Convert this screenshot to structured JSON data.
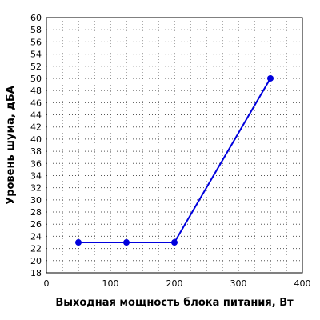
{
  "chart_data": {
    "type": "line",
    "xlabel": "Выходная мощность блока питания, Вт",
    "ylabel": "Уровень шума, дБА",
    "xlim": [
      0,
      400
    ],
    "ylim": [
      18,
      60
    ],
    "x_ticks": [
      0,
      100,
      200,
      300,
      400
    ],
    "y_ticks": [
      18,
      20,
      22,
      24,
      26,
      28,
      30,
      32,
      34,
      36,
      38,
      40,
      42,
      44,
      46,
      48,
      50,
      52,
      54,
      56,
      58,
      60
    ],
    "grid": true,
    "grid_style": "dotted",
    "series": [
      {
        "color": "#0000dd",
        "x": [
          50,
          125,
          200,
          350
        ],
        "y": [
          23,
          23,
          23,
          50
        ]
      }
    ]
  }
}
